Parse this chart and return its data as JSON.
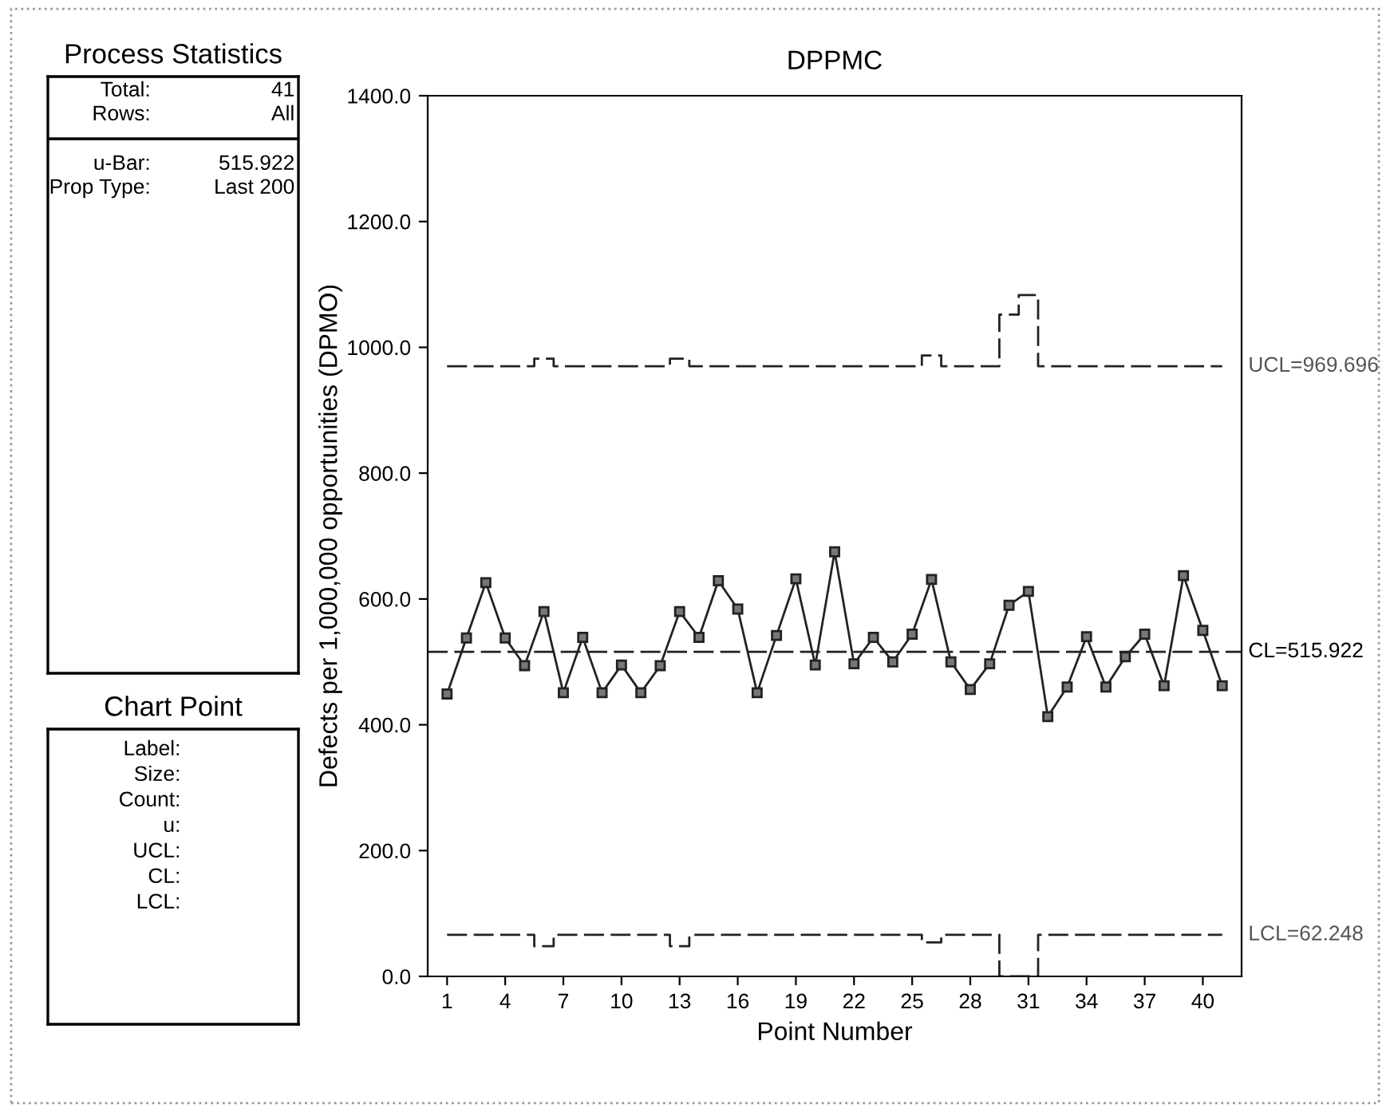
{
  "chart_data": [
    {
      "type": "other",
      "title": "Process Statistics",
      "annotations": [
        "Total:",
        "41",
        "Rows:",
        "All",
        "u-Bar:",
        "515.922",
        "Prop Type:",
        "Last 200"
      ]
    },
    {
      "type": "other",
      "title": "Chart Point",
      "annotations": [
        "Label:",
        "Size:",
        "Count:",
        "u:",
        "UCL:",
        "CL:",
        "LCL:"
      ]
    },
    {
      "type": "line",
      "title": "DPPMC",
      "xlabel": "Point Number",
      "ylabel": "Defects per 1,000,000 opportunities (DPMO)",
      "x": [
        1,
        2,
        3,
        4,
        5,
        6,
        7,
        8,
        9,
        10,
        11,
        12,
        13,
        14,
        15,
        16,
        17,
        18,
        19,
        20,
        21,
        22,
        23,
        24,
        25,
        26,
        27,
        28,
        29,
        30,
        31,
        32,
        33,
        34,
        35,
        36,
        37,
        38,
        39,
        40,
        41
      ],
      "series": [
        {
          "type": "line",
          "color": "#222222",
          "marker": "square",
          "line_style": "solid",
          "values": [
            449,
            538,
            626,
            538,
            494,
            580,
            451,
            539,
            451,
            495,
            451,
            494,
            580,
            539,
            629,
            584,
            451,
            542,
            632,
            495,
            675,
            497,
            539,
            500,
            544,
            631,
            500,
            456,
            497,
            590,
            612,
            413,
            460,
            540,
            460,
            508,
            544,
            462,
            637,
            550,
            462
          ]
        },
        {
          "type": "step",
          "name": "UCL=969.696",
          "color": "#222222",
          "marker": "none",
          "line_style": "dashed",
          "values": [
            970,
            970,
            970,
            970,
            970,
            982,
            970,
            970,
            970,
            970,
            970,
            970,
            982,
            970,
            970,
            970,
            970,
            970,
            970,
            970,
            970,
            970,
            970,
            970,
            970,
            987,
            970,
            970,
            970,
            1052,
            1083,
            970,
            970,
            970,
            970,
            970,
            970,
            970,
            970,
            970,
            970
          ]
        },
        {
          "type": "step",
          "name": "LCL=62.248",
          "color": "#222222",
          "marker": "none",
          "line_style": "dashed",
          "values": [
            66,
            66,
            66,
            66,
            66,
            48,
            66,
            66,
            66,
            66,
            66,
            66,
            48,
            66,
            66,
            66,
            66,
            66,
            66,
            66,
            66,
            66,
            66,
            66,
            66,
            54,
            66,
            66,
            66,
            0,
            0,
            66,
            66,
            66,
            66,
            66,
            66,
            66,
            66,
            66,
            66
          ]
        }
      ],
      "ref_lines": [
        {
          "axis": "y",
          "value": 515.922,
          "label": "CL=515.922",
          "color": "#222222",
          "line_style": "dashed"
        }
      ],
      "xlim": [
        0,
        42
      ],
      "xticks": [
        1,
        4,
        7,
        10,
        13,
        16,
        19,
        22,
        25,
        28,
        31,
        34,
        37,
        40
      ],
      "ylim": [
        0,
        1400
      ],
      "yticks": [
        {
          "value": 0,
          "label": "0.0"
        },
        {
          "value": 200,
          "label": "200.0"
        },
        {
          "value": 400,
          "label": "400.0"
        },
        {
          "value": 600,
          "label": "600.0"
        },
        {
          "value": 800,
          "label": "800.0"
        },
        {
          "value": 1000,
          "label": "1000.0"
        },
        {
          "value": 1200,
          "label": "1200.0"
        },
        {
          "value": 1400,
          "label": "1400.0"
        }
      ],
      "grid": false,
      "legend": false
    }
  ]
}
